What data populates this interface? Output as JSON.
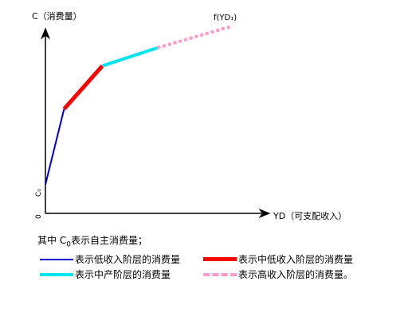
{
  "chart_data": {
    "type": "line",
    "title": "",
    "ylabel": "C（消费量）",
    "xlabel": "YD（可支配收入）",
    "curve_label": "f(YD₁)",
    "y_axis_lower_labels": [
      "C₀",
      "0"
    ],
    "series": [
      {
        "name": "表示低收入阶层的消费量",
        "color": "#0000cc",
        "style": "solid",
        "points": [
          [
            0,
            0.16
          ],
          [
            0.085,
            0.58
          ]
        ]
      },
      {
        "name": "表示中低收入阶层的消费量",
        "color": "#ff0000",
        "style": "solid",
        "points": [
          [
            0.085,
            0.58
          ],
          [
            0.26,
            0.82
          ]
        ]
      },
      {
        "name": "表示中产阶层的消费量",
        "color": "#00e5ee",
        "style": "solid",
        "points": [
          [
            0.26,
            0.82
          ],
          [
            0.51,
            0.92
          ]
        ]
      },
      {
        "name": "表示高收入阶层的消费量。",
        "color": "#ff99cc",
        "style": "dashed",
        "points": [
          [
            0.51,
            0.92
          ],
          [
            0.85,
            1.04
          ]
        ]
      }
    ],
    "xlim": [
      0,
      1.0
    ],
    "ylim": [
      0,
      1.0
    ],
    "grid": false,
    "legend_position": "bottom"
  },
  "note": {
    "prefix": "其中 C",
    "subscript": "0",
    "suffix": "表示自主消费量；"
  }
}
